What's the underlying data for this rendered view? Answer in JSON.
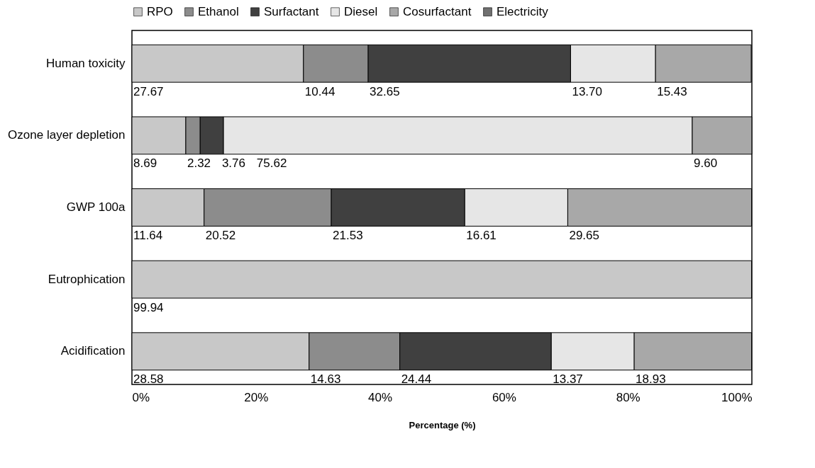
{
  "chart_data": {
    "type": "bar",
    "orientation": "horizontal",
    "stacked": true,
    "categories": [
      "Human toxicity",
      "Ozone layer depletion",
      "GWP 100a",
      "Eutrophication",
      "Acidification"
    ],
    "series": [
      {
        "name": "RPO",
        "color": "#c8c8c8",
        "values": [
          27.67,
          8.69,
          11.64,
          99.94,
          28.58
        ],
        "value_labels": [
          "27.67",
          "8.69",
          "11.64",
          "99.94",
          "28.58"
        ]
      },
      {
        "name": "Ethanol",
        "color": "#8c8c8c",
        "values": [
          10.44,
          2.32,
          20.52,
          null,
          14.63
        ],
        "value_labels": [
          "10.44",
          "2.32",
          "20.52",
          null,
          "14.63"
        ]
      },
      {
        "name": "Surfactant",
        "color": "#404040",
        "values": [
          32.65,
          3.76,
          21.53,
          null,
          24.44
        ],
        "value_labels": [
          "32.65",
          "3.76",
          "21.53",
          null,
          "24.44"
        ]
      },
      {
        "name": "Diesel",
        "color": "#e6e6e6",
        "values": [
          13.7,
          75.62,
          16.61,
          null,
          13.37
        ],
        "value_labels": [
          "13.70",
          "75.62",
          "16.61",
          null,
          "13.37"
        ]
      },
      {
        "name": "Cosurfactant",
        "color": "#a8a8a8",
        "values": [
          15.43,
          9.6,
          29.65,
          null,
          18.93
        ],
        "value_labels": [
          "15.43",
          "9.60",
          "29.65",
          null,
          "18.93"
        ]
      },
      {
        "name": "Electricity",
        "color": "#707070",
        "values": [
          null,
          null,
          null,
          null,
          null
        ],
        "value_labels": [
          null,
          null,
          null,
          null,
          null
        ]
      }
    ],
    "xlabel": "Percentage (%)",
    "xlim": [
      0,
      100
    ],
    "xticks": [
      {
        "value": 0,
        "label": "0%"
      },
      {
        "value": 20,
        "label": "20%"
      },
      {
        "value": 40,
        "label": "40%"
      },
      {
        "value": 60,
        "label": "60%"
      },
      {
        "value": 80,
        "label": "80%"
      },
      {
        "value": 100,
        "label": "100%"
      }
    ],
    "grid": false,
    "legend": "top"
  }
}
